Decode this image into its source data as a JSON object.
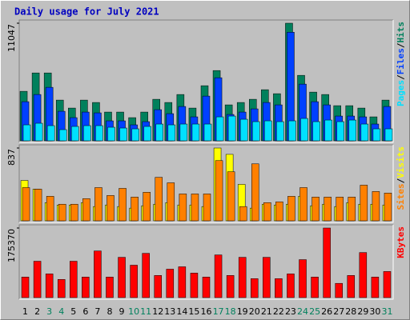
{
  "chart_data": {
    "type": "bar",
    "title": "Daily usage for July 2021",
    "title_color": "#0000c0",
    "categories": [
      "1",
      "2",
      "3",
      "4",
      "5",
      "6",
      "7",
      "8",
      "9",
      "10",
      "11",
      "12",
      "13",
      "14",
      "15",
      "16",
      "17",
      "18",
      "19",
      "20",
      "21",
      "22",
      "23",
      "24",
      "25",
      "26",
      "27",
      "28",
      "29",
      "30",
      "31"
    ],
    "category_label_colors": [
      "#000000",
      "#000000",
      "#00805c",
      "#00805c",
      "#000000",
      "#000000",
      "#000000",
      "#000000",
      "#000000",
      "#00805c",
      "#00805c",
      "#000000",
      "#000000",
      "#000000",
      "#000000",
      "#000000",
      "#00805c",
      "#00805c",
      "#000000",
      "#000000",
      "#000000",
      "#000000",
      "#000000",
      "#00805c",
      "#00805c",
      "#000000",
      "#000000",
      "#000000",
      "#000000",
      "#000000",
      "#00805c"
    ],
    "label_separator": "/",
    "panels": [
      {
        "ylim": [
          0,
          11047
        ],
        "yticks": [
          11047
        ],
        "series": [
          {
            "name": "Hits",
            "color": "#00805c",
            "values": [
              4650,
              6375,
              6375,
              3825,
              3075,
              3825,
              3600,
              2700,
              2700,
              2175,
              2700,
              3900,
              3600,
              4350,
              3075,
              5175,
              6600,
              3375,
              3600,
              3900,
              4800,
              4425,
              11047,
              6150,
              4575,
              4350,
              3300,
              3300,
              3075,
              2250,
              3825
            ]
          },
          {
            "name": "Files",
            "color": "#0040ff",
            "values": [
              3675,
              4350,
              5025,
              2775,
              2175,
              2700,
              2625,
              1875,
              1875,
              1500,
              1800,
              2925,
              2550,
              3225,
              2250,
              4200,
              5925,
              2475,
              2700,
              3000,
              3600,
              3375,
              10200,
              5325,
              3675,
              3375,
              2325,
              2325,
              2250,
              1575,
              3225
            ]
          },
          {
            "name": "Pages",
            "color": "#00e0ff",
            "values": [
              1500,
              1650,
              1425,
              1050,
              1350,
              1425,
              1425,
              1275,
              1200,
              1125,
              1350,
              1575,
              1500,
              1575,
              1575,
              1575,
              2250,
              2325,
              2025,
              1800,
              1875,
              1800,
              1875,
              2100,
              1800,
              1950,
              1800,
              1950,
              1575,
              1125,
              1125
            ]
          }
        ]
      },
      {
        "ylim": [
          0,
          837
        ],
        "yticks": [
          837
        ],
        "series": [
          {
            "name": "Visits",
            "color": "#ffff00",
            "values": [
              464,
              364,
              209,
              182,
              182,
              209,
              164,
              182,
              164,
              146,
              173,
              191,
              209,
              182,
              182,
              164,
              837,
              764,
              419,
              146,
              191,
              182,
              191,
              282,
              173,
              191,
              164,
              209,
              191,
              191,
              182
            ]
          },
          {
            "name": "Sites",
            "color": "#ff8000",
            "values": [
              382,
              364,
              282,
              191,
              191,
              255,
              382,
              291,
              373,
              273,
              328,
              500,
              437,
              309,
              309,
              309,
              692,
              564,
              164,
              655,
              209,
              218,
              282,
              382,
              273,
              273,
              273,
              273,
              410,
              337,
              319
            ]
          }
        ]
      },
      {
        "ylim": [
          0,
          175370
        ],
        "yticks": [
          175370
        ],
        "series": [
          {
            "name": "KBytes",
            "color": "#ff0000",
            "values": [
              51800,
              91700,
              59800,
              45800,
              91700,
              51800,
              117600,
              51800,
              101600,
              81700,
              111600,
              55800,
              71700,
              77700,
              61800,
              51800,
              107600,
              55800,
              101600,
              47800,
              101600,
              47800,
              59800,
              95700,
              51800,
              175370,
              35900,
              55800,
              113600,
              51800,
              65800
            ]
          }
        ]
      }
    ]
  }
}
